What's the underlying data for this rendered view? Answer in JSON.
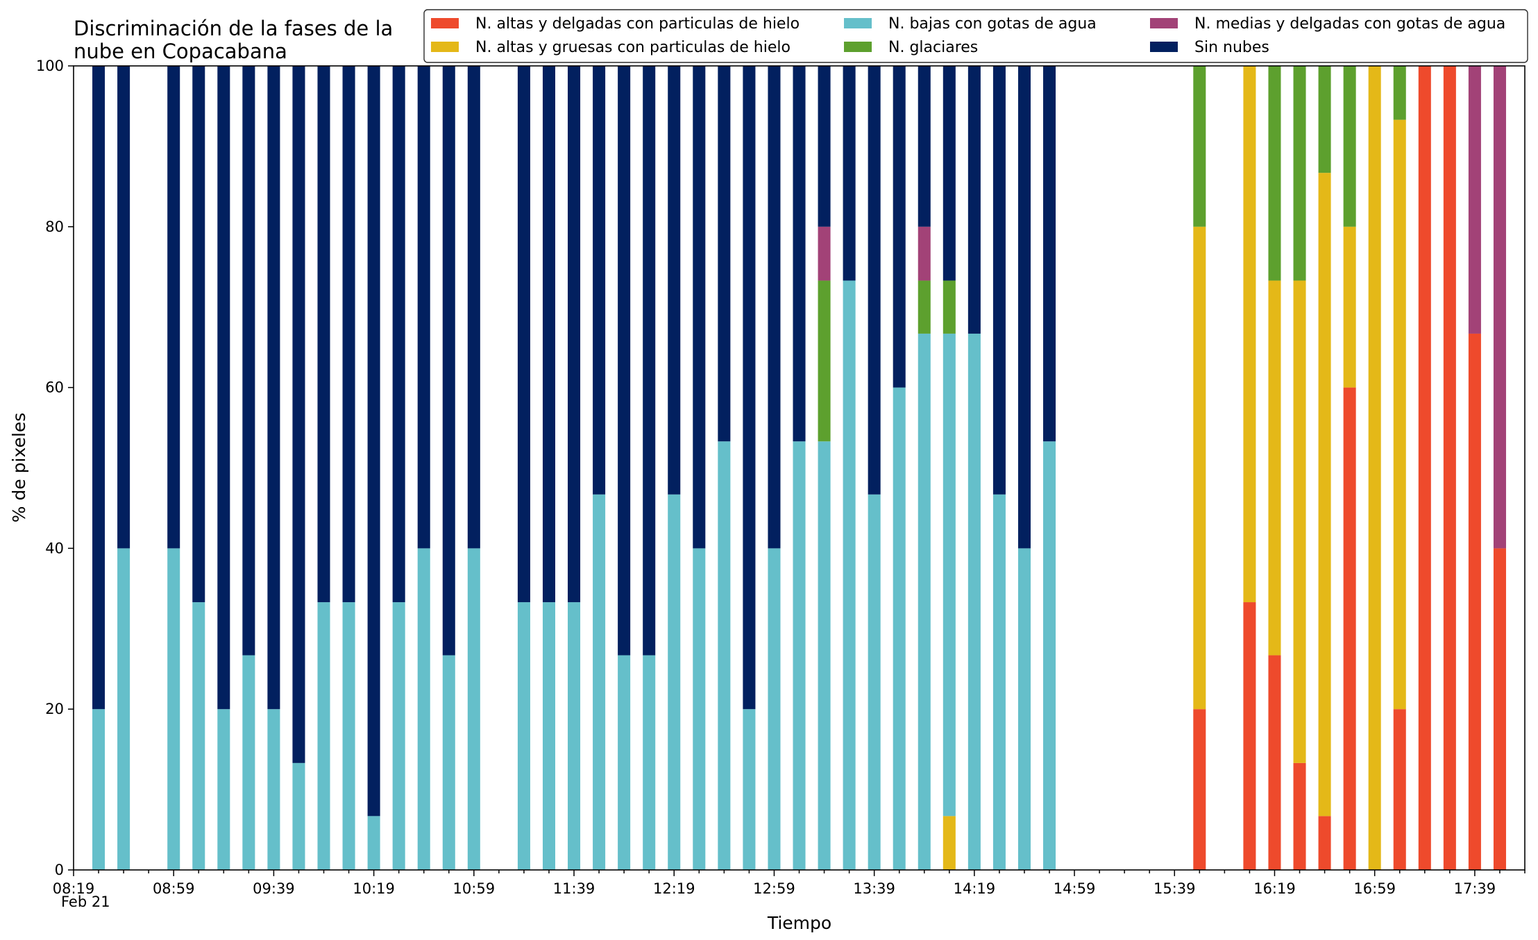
{
  "chart_data": {
    "type": "bar",
    "stacked": true,
    "title_lines": [
      "Discriminación de la fases de la",
      "nube en Copacabana"
    ],
    "xlabel": "Tiempo",
    "ylabel": "% de pixeles",
    "ylim": [
      0,
      100
    ],
    "y_ticks": [
      0,
      20,
      40,
      60,
      80,
      100
    ],
    "grid": false,
    "legend_position": "top-right",
    "x_axis": {
      "start": "08:19",
      "end": "17:59",
      "bar_interval_minutes": 10,
      "tick_labels": [
        "08:19",
        "08:59",
        "09:39",
        "10:19",
        "10:59",
        "11:39",
        "12:19",
        "12:59",
        "13:39",
        "14:19",
        "14:59",
        "15:39",
        "16:19",
        "16:59",
        "17:39"
      ],
      "date_label": "Feb 21"
    },
    "times": [
      "08:29",
      "08:39",
      "08:59",
      "09:09",
      "09:19",
      "09:29",
      "09:39",
      "09:49",
      "09:59",
      "10:09",
      "10:19",
      "10:29",
      "10:39",
      "10:49",
      "10:59",
      "11:19",
      "11:29",
      "11:39",
      "11:49",
      "11:59",
      "12:09",
      "12:19",
      "12:29",
      "12:39",
      "12:49",
      "12:59",
      "13:09",
      "13:19",
      "13:29",
      "13:39",
      "13:49",
      "13:59",
      "14:09",
      "14:19",
      "14:29",
      "14:39",
      "14:49",
      "15:49",
      "16:09",
      "16:19",
      "16:29",
      "16:39",
      "16:49",
      "16:59",
      "17:09",
      "17:19",
      "17:29",
      "17:39",
      "17:49"
    ],
    "series": [
      {
        "name": "N. altas y delgadas con particulas de hielo",
        "color": "#EE4A2C",
        "values": [
          0,
          0,
          0,
          0,
          0,
          0,
          0,
          0,
          0,
          0,
          0,
          0,
          0,
          0,
          0,
          0,
          0,
          0,
          0,
          0,
          0,
          0,
          0,
          0,
          0,
          0,
          0,
          0,
          0,
          0,
          0,
          0,
          0,
          0,
          0,
          0,
          0,
          20,
          33.3,
          26.7,
          13.3,
          6.7,
          60,
          0,
          20,
          100,
          100,
          66.7,
          40
        ]
      },
      {
        "name": "N. altas y gruesas con particulas de hielo",
        "color": "#E4B818",
        "values": [
          0,
          0,
          0,
          0,
          0,
          0,
          0,
          0,
          0,
          0,
          0,
          0,
          0,
          0,
          0,
          0,
          0,
          0,
          0,
          0,
          0,
          0,
          0,
          0,
          0,
          0,
          0,
          0,
          0,
          0,
          0,
          0,
          6.7,
          0,
          0,
          0,
          0,
          60,
          66.7,
          46.6,
          60,
          80,
          20,
          100,
          73.3,
          0,
          0,
          0,
          0
        ]
      },
      {
        "name": "N. bajas con gotas de agua",
        "color": "#65BFCA",
        "values": [
          20,
          40,
          40,
          33.3,
          20,
          26.7,
          20,
          13.3,
          33.3,
          33.3,
          6.7,
          33.3,
          40,
          26.7,
          40,
          33.3,
          33.3,
          33.3,
          46.7,
          26.7,
          26.7,
          46.7,
          40,
          53.3,
          20,
          40,
          53.3,
          53.3,
          73.3,
          46.7,
          60,
          66.7,
          60,
          66.7,
          46.7,
          40,
          53.3,
          0,
          0,
          0,
          0,
          0,
          0,
          0,
          0,
          0,
          0,
          0,
          0
        ]
      },
      {
        "name": "N. glaciares",
        "color": "#5DA02E",
        "values": [
          0,
          0,
          0,
          0,
          0,
          0,
          0,
          0,
          0,
          0,
          0,
          0,
          0,
          0,
          0,
          0,
          0,
          0,
          0,
          0,
          0,
          0,
          0,
          0,
          0,
          0,
          0,
          20,
          0,
          0,
          0,
          6.6,
          6.6,
          0,
          0,
          0,
          0,
          20,
          0,
          26.7,
          26.7,
          13.3,
          20,
          0,
          6.7,
          0,
          0,
          0,
          0
        ]
      },
      {
        "name": "N. medias y delgadas con gotas de agua",
        "color": "#A24277",
        "values": [
          0,
          0,
          0,
          0,
          0,
          0,
          0,
          0,
          0,
          0,
          0,
          0,
          0,
          0,
          0,
          0,
          0,
          0,
          0,
          0,
          0,
          0,
          0,
          0,
          0,
          0,
          0,
          6.7,
          0,
          0,
          0,
          6.7,
          0,
          0,
          0,
          0,
          0,
          0,
          0,
          0,
          0,
          0,
          0,
          0,
          0,
          0,
          0,
          33.3,
          60
        ]
      },
      {
        "name": "Sin nubes",
        "color": "#02205F",
        "values": [
          80,
          60,
          60,
          66.7,
          80,
          73.3,
          80,
          86.7,
          66.7,
          66.7,
          93.3,
          66.7,
          60,
          73.3,
          60,
          66.7,
          66.7,
          66.7,
          53.3,
          73.3,
          73.3,
          53.3,
          60,
          46.7,
          80,
          60,
          46.7,
          20,
          26.7,
          53.3,
          40,
          20,
          26.7,
          33.3,
          53.3,
          60,
          46.7,
          0,
          0,
          0,
          0,
          0,
          0,
          0,
          0,
          0,
          0,
          0,
          0
        ]
      }
    ]
  }
}
